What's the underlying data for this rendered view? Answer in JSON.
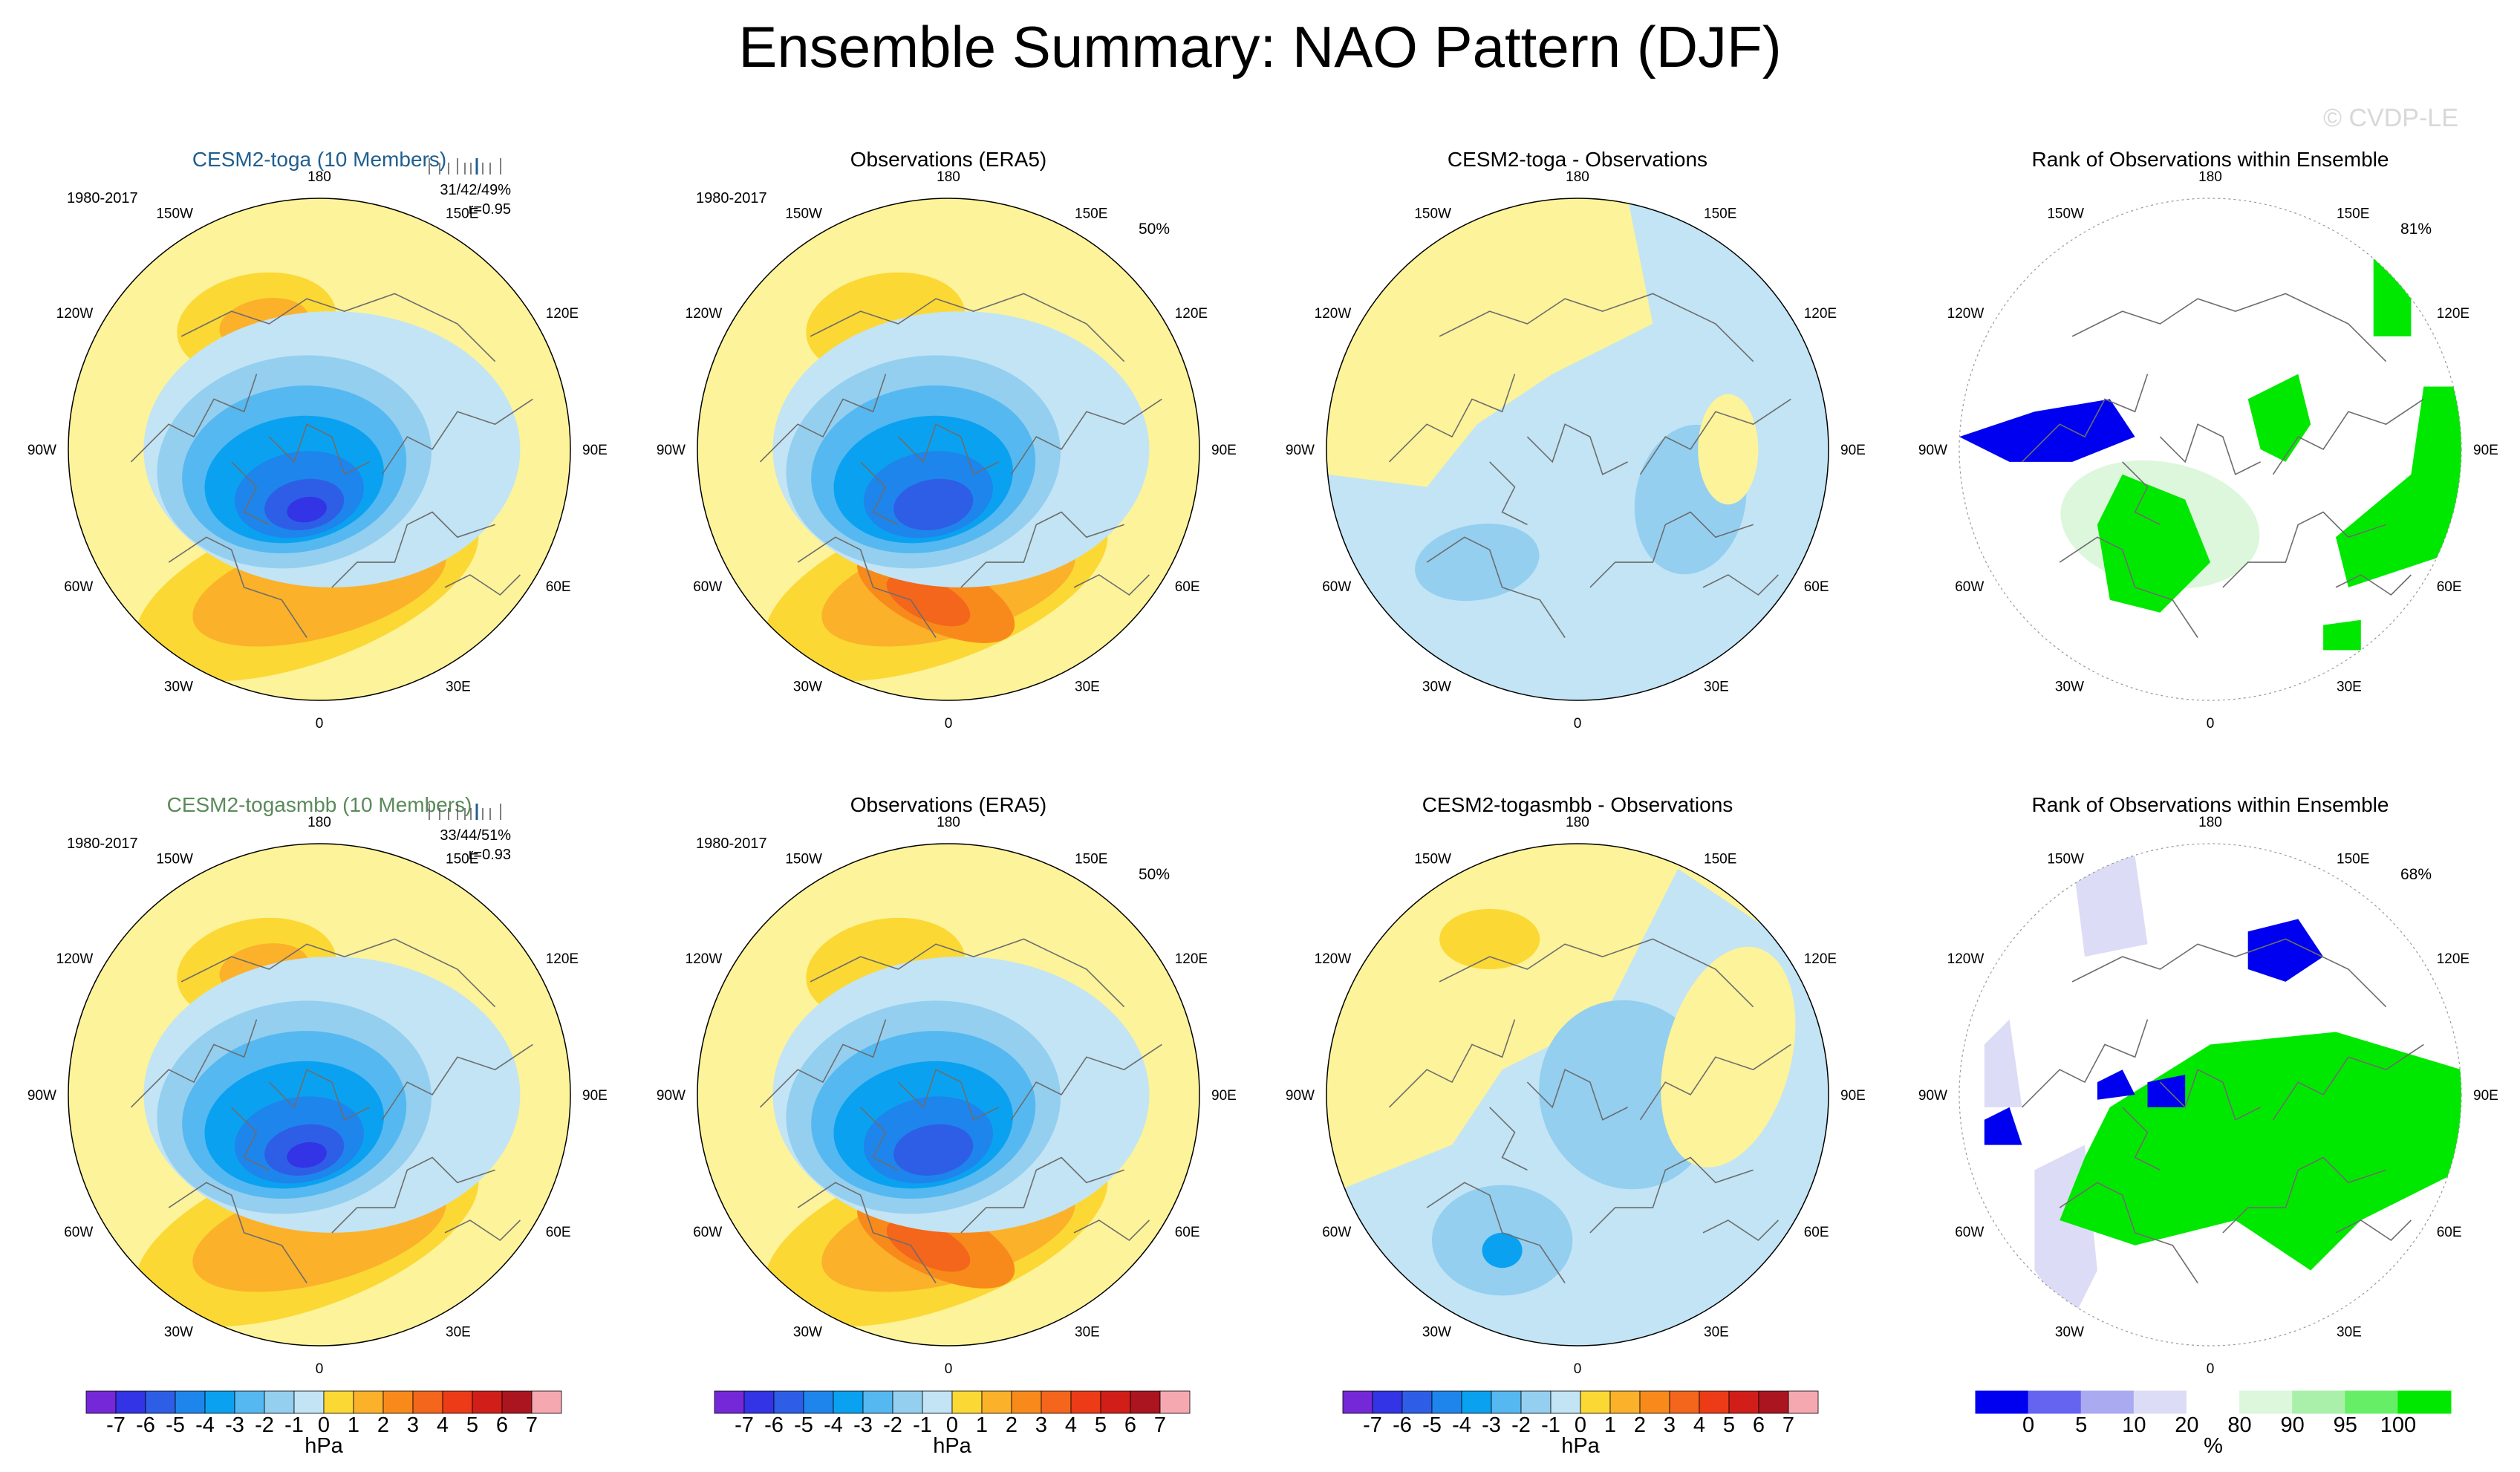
{
  "title": "Ensemble Summary: NAO Pattern (DJF)",
  "watermark": "© CVDP-LE",
  "colors": {
    "ocean_yellow": "#fcf39a",
    "pos": [
      "#fcd835",
      "#fbb12a",
      "#f88a1c",
      "#f4661b",
      "#ec3b16",
      "#d11e19",
      "#ab1520",
      "#f6a8b0"
    ],
    "neg": [
      "#c2e4f5",
      "#94cff0",
      "#56b8f0",
      "#0aa2f0",
      "#1e85ec",
      "#2e5ee6",
      "#3234e6",
      "#7428d8"
    ],
    "rank": [
      "#0000f0",
      "#6464f0",
      "#aaaaf0",
      "#dcdcf6",
      "#ffffff",
      "#dcf7dc",
      "#aaf0aa",
      "#66ee66",
      "#00e800"
    ],
    "title_top": "#1f5f8f",
    "title_bot": "#5a8a5a"
  },
  "panels": {
    "r1c1": {
      "title": "CESM2-toga (10 Members)",
      "period": "1980-2017",
      "stats": "31/42/49%",
      "corr": "r=0.95"
    },
    "r1c2": {
      "title": "Observations (ERA5)",
      "period": "1980-2017",
      "pct": "50%"
    },
    "r1c3": {
      "title": "CESM2-toga - Observations"
    },
    "r1c4": {
      "title": "Rank of Observations within Ensemble",
      "pct": "81%"
    },
    "r2c1": {
      "title": "CESM2-togasmbb (10 Members)",
      "period": "1980-2017",
      "stats": "33/44/51%",
      "corr": "r=0.93"
    },
    "r2c2": {
      "title": "Observations (ERA5)",
      "period": "1980-2017",
      "pct": "50%"
    },
    "r2c3": {
      "title": "CESM2-togasmbb - Observations"
    },
    "r2c4": {
      "title": "Rank of Observations within Ensemble",
      "pct": "68%"
    }
  },
  "map_labels": [
    "180",
    "150E",
    "120E",
    "90E",
    "60E",
    "30E",
    "0",
    "30W",
    "60W",
    "90W",
    "120W",
    "150W"
  ],
  "colorbar_hpa": {
    "ticks": [
      "-7",
      "-6",
      "-5",
      "-4",
      "-3",
      "-2",
      "-1",
      "0",
      "1",
      "2",
      "3",
      "4",
      "5",
      "6",
      "7"
    ],
    "unit": "hPa"
  },
  "colorbar_rank": {
    "ticks": [
      "0",
      "5",
      "10",
      "20",
      "80",
      "90",
      "95",
      "100"
    ],
    "unit": "%"
  },
  "chart_data": {
    "type": "heatmap",
    "title": "Ensemble Summary: NAO Pattern (DJF)",
    "projection": "north polar stereographic",
    "contour_levels_hpa": [
      -7,
      -6,
      -5,
      -4,
      -3,
      -2,
      -1,
      0,
      1,
      2,
      3,
      4,
      5,
      6,
      7
    ],
    "rank_levels_pct": [
      0,
      5,
      10,
      20,
      80,
      90,
      95,
      100
    ],
    "panels": [
      {
        "row": 1,
        "col": 1,
        "title": "CESM2-toga (10 Members)",
        "period": "1980-2017",
        "stats": "31/42/49%",
        "r": 0.95
      },
      {
        "row": 1,
        "col": 2,
        "title": "Observations (ERA5)",
        "period": "1980-2017",
        "pct_variance": 50
      },
      {
        "row": 1,
        "col": 3,
        "title": "CESM2-toga - Observations"
      },
      {
        "row": 1,
        "col": 4,
        "title": "Rank of Observations within Ensemble",
        "pct": 81
      },
      {
        "row": 2,
        "col": 1,
        "title": "CESM2-togasmbb (10 Members)",
        "period": "1980-2017",
        "stats": "33/44/51%",
        "r": 0.93
      },
      {
        "row": 2,
        "col": 2,
        "title": "Observations (ERA5)",
        "period": "1980-2017",
        "pct_variance": 50
      },
      {
        "row": 2,
        "col": 3,
        "title": "CESM2-togasmbb - Observations"
      },
      {
        "row": 2,
        "col": 4,
        "title": "Rank of Observations within Ensemble",
        "pct": 68
      }
    ]
  }
}
